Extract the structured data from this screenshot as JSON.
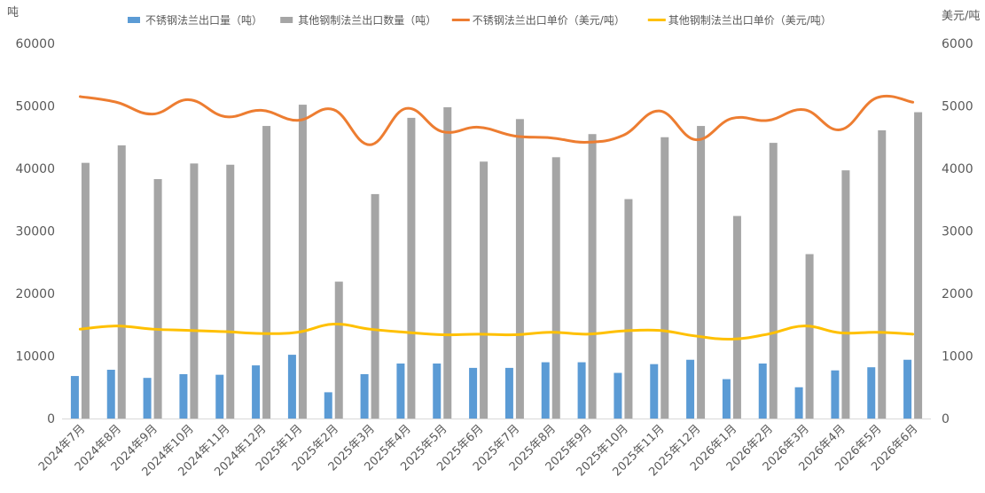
{
  "chart_data": {
    "type": "bar",
    "left_unit": "吨",
    "right_unit": "美元/吨",
    "categories": [
      "2024年7月",
      "2024年8月",
      "2024年9月",
      "2024年10月",
      "2024年11月",
      "2024年12月",
      "2025年1月",
      "2025年2月",
      "2025年3月",
      "2025年4月",
      "2025年5月",
      "2025年6月",
      "2025年7月",
      "2025年8月",
      "2025年9月",
      "2025年10月",
      "2025年11月",
      "2025年12月",
      "2026年1月",
      "2026年2月",
      "2026年3月",
      "2026年4月",
      "2026年5月",
      "2026年6月"
    ],
    "ylim_left": [
      0,
      60000
    ],
    "ylim_right": [
      0,
      6000
    ],
    "yticks_left": [
      "0",
      "10000",
      "20000",
      "30000",
      "40000",
      "50000",
      "60000"
    ],
    "yticks_right": [
      "0",
      "1000",
      "2000",
      "3000",
      "4000",
      "5000",
      "6000"
    ],
    "grid": false,
    "legend_position": "top",
    "series": [
      {
        "name": "不锈钢法兰出口量（吨）",
        "type": "bar",
        "axis": "left",
        "color": "#5B9BD5",
        "values": [
          6800,
          7800,
          6500,
          7100,
          7000,
          8500,
          10200,
          4200,
          7100,
          8800,
          8800,
          8100,
          8100,
          9000,
          9000,
          7300,
          8700,
          9400,
          6300,
          8800,
          5000,
          7700,
          8200,
          9400
        ]
      },
      {
        "name": "其他钢制法兰出口数量（吨）",
        "type": "bar",
        "axis": "left",
        "color": "#A5A5A5",
        "values": [
          40900,
          43700,
          38300,
          40800,
          40600,
          46800,
          50200,
          21900,
          35900,
          48100,
          49800,
          41100,
          47900,
          41800,
          45500,
          35100,
          45000,
          46800,
          32400,
          44100,
          26300,
          39700,
          46100,
          49000
        ]
      },
      {
        "name": "不锈钢法兰出口单价（美元/吨）",
        "type": "line",
        "axis": "right",
        "color": "#ED7D31",
        "values": [
          5150,
          5060,
          4870,
          5100,
          4830,
          4930,
          4770,
          4940,
          4380,
          4960,
          4590,
          4660,
          4520,
          4490,
          4420,
          4530,
          4920,
          4460,
          4800,
          4770,
          4940,
          4620,
          5130,
          5060
        ]
      },
      {
        "name": "其他钢制法兰出口单价（美元/吨）",
        "type": "line",
        "axis": "right",
        "color": "#FFC000",
        "values": [
          1430,
          1480,
          1430,
          1410,
          1390,
          1360,
          1380,
          1510,
          1430,
          1380,
          1340,
          1350,
          1340,
          1380,
          1350,
          1400,
          1410,
          1320,
          1270,
          1350,
          1480,
          1370,
          1380,
          1350
        ]
      }
    ]
  }
}
